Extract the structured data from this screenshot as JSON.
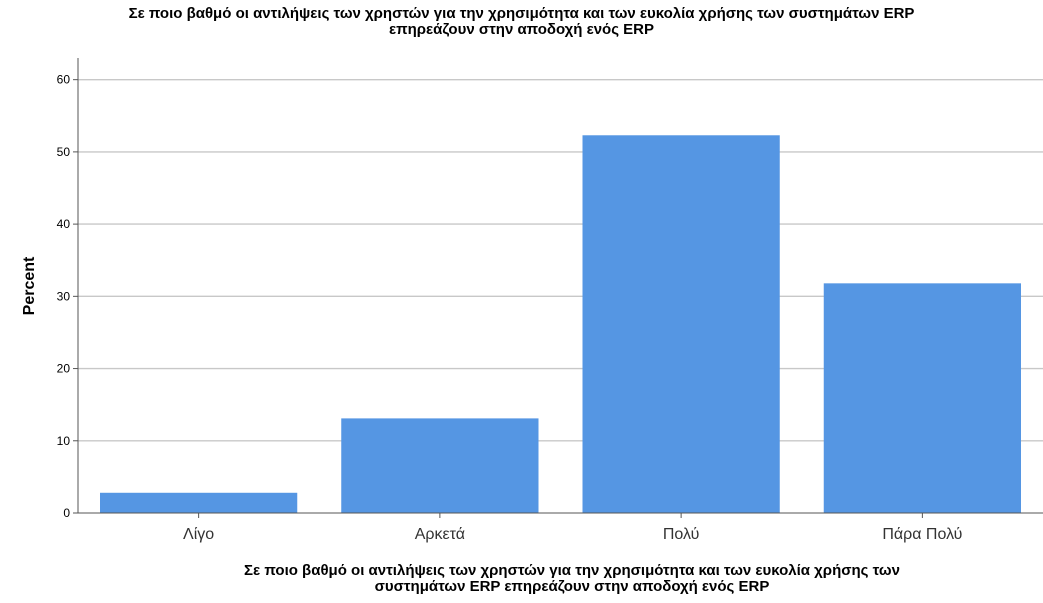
{
  "chart_data": {
    "type": "bar",
    "title": "Σε ποιο βαθμό οι αντιλήψεις των χρηστών για την χρησιμότητα και των ευκολία χρήσης των συστημάτων ERP\nεπηρεάζουν στην αποδοχή ενός ERP",
    "xlabel": "Σε ποιο βαθμό οι αντιλήψεις των χρηστών για την χρησιμότητα και των ευκολία χρήσης των\nσυστημάτων ERP επηρεάζουν στην αποδοχή ενός ERP",
    "ylabel": "Percent",
    "categories": [
      "Λίγο",
      "Αρκετά",
      "Πολύ",
      "Πάρα Πολύ"
    ],
    "values": [
      2.8,
      13.1,
      52.3,
      31.8
    ],
    "ylim": [
      0,
      63
    ],
    "yticks": [
      0,
      10,
      20,
      30,
      40,
      50,
      60
    ],
    "grid": true,
    "bar_color": "#5596e3",
    "grid_color": "#c8c8c8"
  }
}
